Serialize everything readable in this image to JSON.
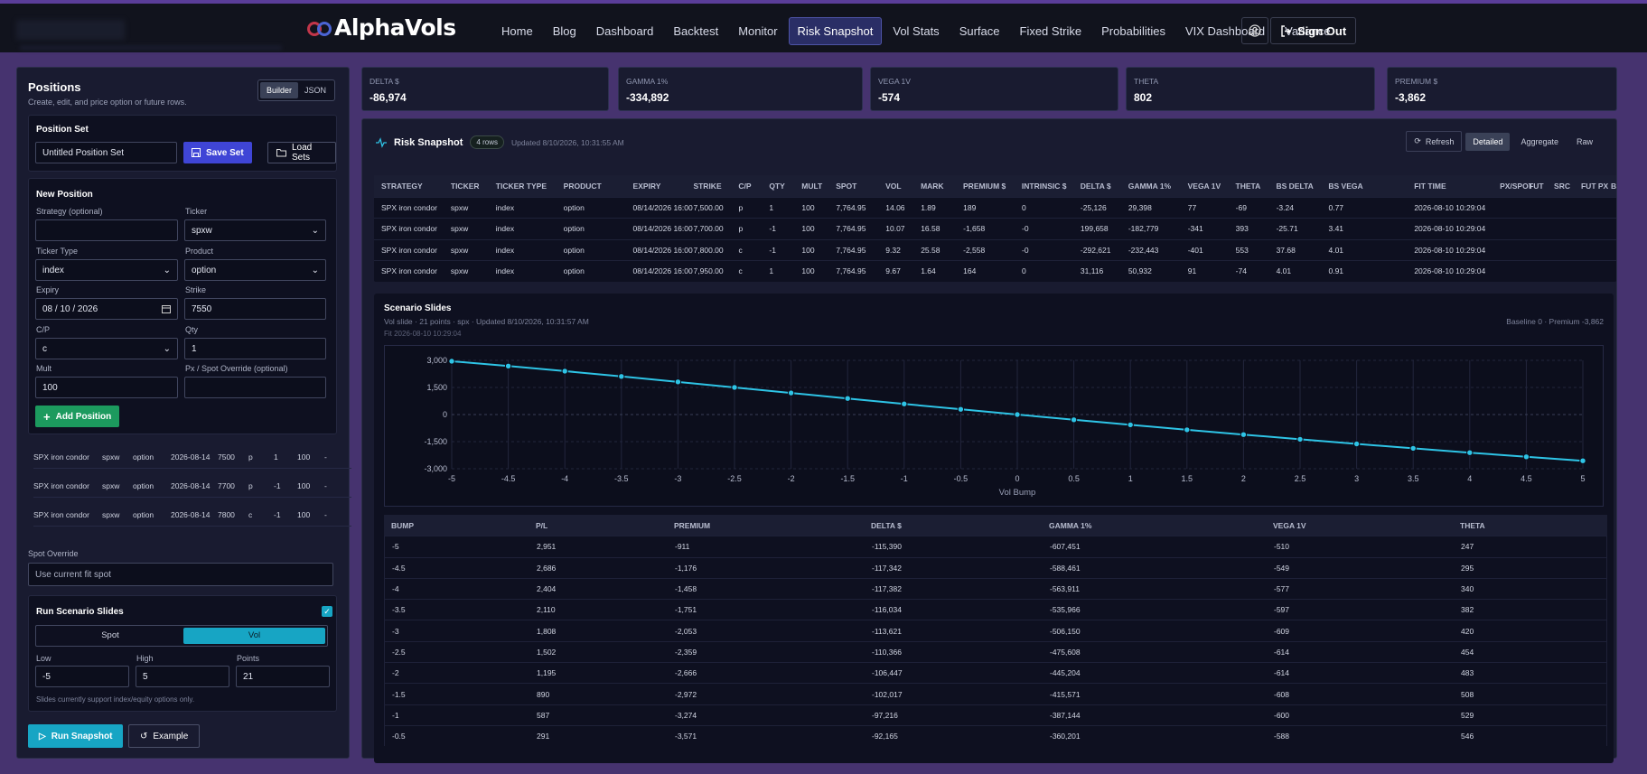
{
  "brand": {
    "logo_text": "AlphaVols",
    "colors": {
      "accent": "#17a5c4",
      "primary": "#3f45d6",
      "success": "#1c9a5e",
      "nav_active": "#2a2e66"
    }
  },
  "nav": {
    "items": [
      "Home",
      "Blog",
      "Dashboard",
      "Backtest",
      "Monitor",
      "Risk Snapshot",
      "Vol Stats",
      "Surface",
      "Fixed Strike",
      "Probabilities",
      "VIX Dashboard",
      "Variance"
    ],
    "active": "Risk Snapshot",
    "sign_out": "Sign Out",
    "user_icon": "user-circle-icon"
  },
  "positions": {
    "title": "Positions",
    "subtitle": "Create, edit, and price option or future rows.",
    "mode_builder": "Builder",
    "mode_json": "JSON",
    "set": {
      "title": "Position Set",
      "name": "Untitled Position Set",
      "save": "Save Set",
      "load": "Load Sets"
    },
    "new": {
      "title": "New Position",
      "strategy_label": "Strategy (optional)",
      "strategy_value": "",
      "ticker_label": "Ticker",
      "ticker_value": "spxw",
      "type_label": "Ticker Type",
      "type_value": "index",
      "product_label": "Product",
      "product_value": "option",
      "expiry_label": "Expiry",
      "expiry_value": "08 / 10 / 2026",
      "strike_label": "Strike",
      "strike_value": "7550",
      "cp_label": "C/P",
      "cp_value": "c",
      "qty_label": "Qty",
      "qty_value": "1",
      "mult_label": "Mult",
      "mult_value": "100",
      "override_label": "Px / Spot Override (optional)",
      "override_value": "",
      "add": "Add Position"
    },
    "rows": [
      [
        "SPX iron condor",
        "spxw",
        "option",
        "2026-08-14",
        "7500",
        "p",
        "1",
        "100",
        "-"
      ],
      [
        "SPX iron condor",
        "spxw",
        "option",
        "2026-08-14",
        "7700",
        "p",
        "-1",
        "100",
        "-"
      ],
      [
        "SPX iron condor",
        "spxw",
        "option",
        "2026-08-14",
        "7800",
        "c",
        "-1",
        "100",
        "-"
      ]
    ],
    "spot_override_label": "Spot Override",
    "spot_override_placeholder": "Use current fit spot",
    "slides": {
      "title": "Run Scenario Slides",
      "checked": true,
      "opt_spot": "Spot",
      "opt_vol": "Vol",
      "selected": "Vol",
      "low_label": "Low",
      "low": "-5",
      "high_label": "High",
      "high": "5",
      "points_label": "Points",
      "points": "21",
      "note": "Slides currently support index/equity options only."
    },
    "run": "Run Snapshot",
    "example": "Example"
  },
  "metrics": [
    {
      "label": "DELTA $",
      "value": "-86,974"
    },
    {
      "label": "GAMMA 1%",
      "value": "-334,892"
    },
    {
      "label": "VEGA 1V",
      "value": "-574"
    },
    {
      "label": "THETA",
      "value": "802"
    },
    {
      "label": "PREMIUM $",
      "value": "-3,862"
    }
  ],
  "snapshot": {
    "title": "Risk Snapshot",
    "rows_badge": "4 rows",
    "updated": "Updated 8/10/2026, 10:31:55 AM",
    "refresh": "Refresh",
    "views": [
      "Detailed",
      "Aggregate",
      "Raw"
    ],
    "active_view": "Detailed",
    "columns": [
      "STRATEGY",
      "TICKER",
      "TICKER TYPE",
      "PRODUCT",
      "EXPIRY",
      "STRIKE",
      "C/P",
      "QTY",
      "MULT",
      "SPOT",
      "VOL",
      "MARK",
      "PREMIUM $",
      "INTRINSIC $",
      "DELTA $",
      "GAMMA 1%",
      "VEGA 1V",
      "THETA",
      "BS DELTA",
      "BS VEGA",
      "FIT TIME",
      "PX/SPOT",
      "FUT",
      "SRC",
      "FUT PX",
      "B"
    ],
    "rows": [
      [
        "SPX iron condor",
        "spxw",
        "index",
        "option",
        "08/14/2026 16:00",
        "7,500.00",
        "p",
        "1",
        "100",
        "7,764.95",
        "14.06",
        "1.89",
        "189",
        "0",
        "-25,126",
        "29,398",
        "77",
        "-69",
        "-3.24",
        "0.77",
        "2026-08-10 10:29:04",
        "",
        "",
        "",
        "",
        ""
      ],
      [
        "SPX iron condor",
        "spxw",
        "index",
        "option",
        "08/14/2026 16:00",
        "7,700.00",
        "p",
        "-1",
        "100",
        "7,764.95",
        "10.07",
        "16.58",
        "-1,658",
        "-0",
        "199,658",
        "-182,779",
        "-341",
        "393",
        "-25.71",
        "3.41",
        "2026-08-10 10:29:04",
        "",
        "",
        "",
        "",
        ""
      ],
      [
        "SPX iron condor",
        "spxw",
        "index",
        "option",
        "08/14/2026 16:00",
        "7,800.00",
        "c",
        "-1",
        "100",
        "7,764.95",
        "9.32",
        "25.58",
        "-2,558",
        "-0",
        "-292,621",
        "-232,443",
        "-401",
        "553",
        "37.68",
        "4.01",
        "2026-08-10 10:29:04",
        "",
        "",
        "",
        "",
        ""
      ],
      [
        "SPX iron condor",
        "spxw",
        "index",
        "option",
        "08/14/2026 16:00",
        "7,950.00",
        "c",
        "1",
        "100",
        "7,764.95",
        "9.67",
        "1.64",
        "164",
        "0",
        "31,116",
        "50,932",
        "91",
        "-74",
        "4.01",
        "0.91",
        "2026-08-10 10:29:04",
        "",
        "",
        "",
        "",
        ""
      ]
    ]
  },
  "slides_panel": {
    "title": "Scenario Slides",
    "subtitle": "Vol slide · 21 points · spx · Updated 8/10/2026, 10:31:57 AM",
    "fit": "Fit 2026-08-10 10:29:04",
    "baseline": "Baseline 0 · Premium -3,862",
    "columns": [
      "BUMP",
      "P/L",
      "PREMIUM",
      "DELTA $",
      "GAMMA 1%",
      "VEGA 1V",
      "THETA"
    ],
    "rows": [
      [
        "-5",
        "2,951",
        "-911",
        "-115,390",
        "-607,451",
        "-510",
        "247"
      ],
      [
        "-4.5",
        "2,686",
        "-1,176",
        "-117,342",
        "-588,461",
        "-549",
        "295"
      ],
      [
        "-4",
        "2,404",
        "-1,458",
        "-117,382",
        "-563,911",
        "-577",
        "340"
      ],
      [
        "-3.5",
        "2,110",
        "-1,751",
        "-116,034",
        "-535,966",
        "-597",
        "382"
      ],
      [
        "-3",
        "1,808",
        "-2,053",
        "-113,621",
        "-506,150",
        "-609",
        "420"
      ],
      [
        "-2.5",
        "1,502",
        "-2,359",
        "-110,366",
        "-475,608",
        "-614",
        "454"
      ],
      [
        "-2",
        "1,195",
        "-2,666",
        "-106,447",
        "-445,204",
        "-614",
        "483"
      ],
      [
        "-1.5",
        "890",
        "-2,972",
        "-102,017",
        "-415,571",
        "-608",
        "508"
      ],
      [
        "-1",
        "587",
        "-3,274",
        "-97,216",
        "-387,144",
        "-600",
        "529"
      ],
      [
        "-0.5",
        "291",
        "-3,571",
        "-92,165",
        "-360,201",
        "-588",
        "546"
      ]
    ]
  },
  "chart_data": {
    "type": "line",
    "x": [
      -5,
      -4.5,
      -4,
      -3.5,
      -3,
      -2.5,
      -2,
      -1.5,
      -1,
      -0.5,
      0,
      0.5,
      1,
      1.5,
      2,
      2.5,
      3,
      3.5,
      4,
      4.5,
      5
    ],
    "series": [
      {
        "values": [
          2951,
          2686,
          2404,
          2110,
          1808,
          1502,
          1195,
          890,
          587,
          291,
          0,
          -290,
          -570,
          -845,
          -1110,
          -1370,
          -1625,
          -1870,
          -2110,
          -2340,
          -2560
        ]
      }
    ],
    "xlabel": "Vol Bump",
    "ylabel": "",
    "xlim": [
      -5,
      5
    ],
    "ylim": [
      -3000,
      3000
    ],
    "xticks": [
      "-5",
      "-4.5",
      "-4",
      "-3.5",
      "-3",
      "-2.5",
      "-2",
      "-1.5",
      "-1",
      "-0.5",
      "0",
      "0.5",
      "1",
      "1.5",
      "2",
      "2.5",
      "3",
      "3.5",
      "4",
      "4.5",
      "5"
    ],
    "yticks": [
      "3,000",
      "1,500",
      "0",
      "-1,500",
      "-3,000"
    ],
    "grid": true,
    "color": "#2ec4e6"
  }
}
